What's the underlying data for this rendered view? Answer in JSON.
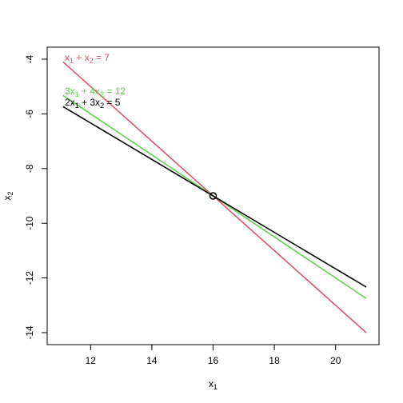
{
  "chart_data": {
    "type": "line",
    "xlabel": {
      "main": "x",
      "sub": "1"
    },
    "ylabel": {
      "main": "x",
      "sub": "2"
    },
    "xlim": [
      11,
      21
    ],
    "ylim": [
      -14,
      -4
    ],
    "x_ticks": [
      12,
      14,
      16,
      18,
      20
    ],
    "y_ticks": [
      -4,
      -6,
      -8,
      -10,
      -12,
      -14
    ],
    "grid": false,
    "series": [
      {
        "name": "x1 + x2 = 7",
        "label_parts": [
          {
            "t": "x"
          },
          {
            "t": "1",
            "sub": true
          },
          {
            "t": " + x"
          },
          {
            "t": "2",
            "sub": true
          },
          {
            "t": " = 7"
          }
        ],
        "color": "#DF536B",
        "x": [
          11.1,
          21
        ],
        "y": [
          -4.1,
          -14.0
        ]
      },
      {
        "name": "3x1 + 4x2 = 12",
        "label_parts": [
          {
            "t": "3x"
          },
          {
            "t": "1",
            "sub": true
          },
          {
            "t": " + 4x"
          },
          {
            "t": "2",
            "sub": true
          },
          {
            "t": " = 12"
          }
        ],
        "color": "#61D04F",
        "x": [
          11.1,
          21
        ],
        "y": [
          -5.325,
          -12.75
        ]
      },
      {
        "name": "2x1 + 3x2 = 5",
        "label_parts": [
          {
            "t": "2x"
          },
          {
            "t": "1",
            "sub": true
          },
          {
            "t": " + 3x"
          },
          {
            "t": "2",
            "sub": true
          },
          {
            "t": " = 5"
          }
        ],
        "color": "#000000",
        "x": [
          11.1,
          21
        ],
        "y": [
          -5.733,
          -12.333
        ]
      }
    ],
    "intersection": {
      "x": 16,
      "y": -9
    }
  }
}
